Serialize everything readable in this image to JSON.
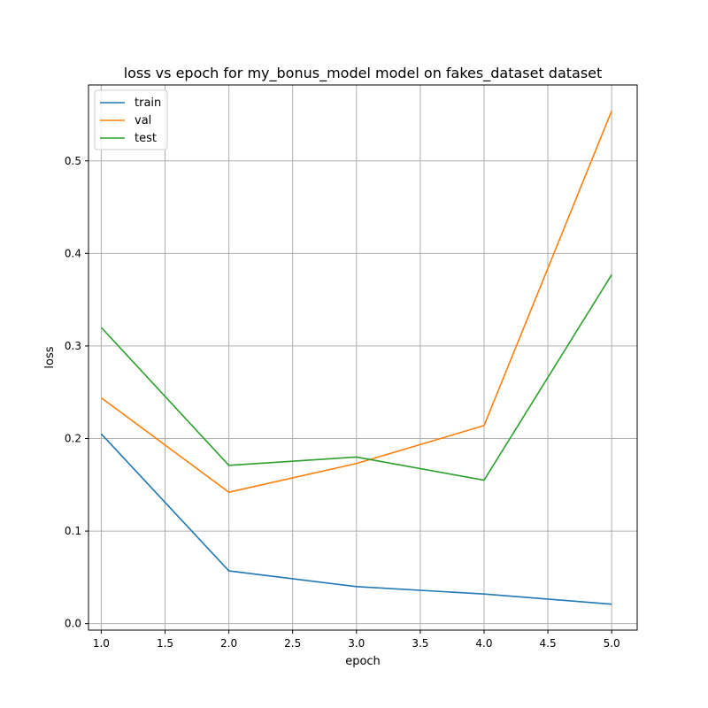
{
  "chart_data": {
    "type": "line",
    "title": "loss vs epoch for my_bonus_model model on fakes_dataset dataset",
    "xlabel": "epoch",
    "ylabel": "loss",
    "x": [
      1.0,
      2.0,
      3.0,
      4.0,
      5.0
    ],
    "xlim": [
      0.9,
      5.2
    ],
    "ylim": [
      -0.007,
      0.582
    ],
    "xticks": [
      1.0,
      1.5,
      2.0,
      2.5,
      3.0,
      3.5,
      4.0,
      4.5,
      5.0
    ],
    "xtick_labels": [
      "1.0",
      "1.5",
      "2.0",
      "2.5",
      "3.0",
      "3.5",
      "4.0",
      "4.5",
      "5.0"
    ],
    "yticks": [
      0.0,
      0.1,
      0.2,
      0.3,
      0.4,
      0.5
    ],
    "ytick_labels": [
      "0.0",
      "0.1",
      "0.2",
      "0.3",
      "0.4",
      "0.5"
    ],
    "grid": true,
    "legend_position": "upper-left",
    "series": [
      {
        "name": "train",
        "color": "#1f77b4",
        "values": [
          0.205,
          0.057,
          0.04,
          0.032,
          0.021
        ]
      },
      {
        "name": "val",
        "color": "#ff7f0e",
        "values": [
          0.244,
          0.142,
          0.173,
          0.214,
          0.554
        ]
      },
      {
        "name": "test",
        "color": "#2ca02c",
        "values": [
          0.32,
          0.171,
          0.18,
          0.155,
          0.377
        ]
      }
    ]
  }
}
